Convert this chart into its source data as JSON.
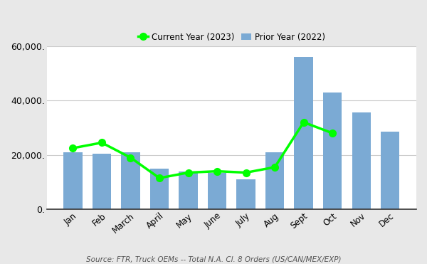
{
  "months": [
    "Jan",
    "Feb",
    "March",
    "April",
    "May",
    "June",
    "July",
    "Aug",
    "Sept",
    "Oct",
    "Nov",
    "Dec"
  ],
  "prior_year_2022": [
    21000,
    20500,
    21000,
    15000,
    14000,
    13500,
    11000,
    21000,
    56000,
    43000,
    35500,
    28500
  ],
  "current_year_2023": [
    22500,
    24500,
    19000,
    11500,
    13500,
    14000,
    13500,
    15500,
    32000,
    28000,
    null,
    null
  ],
  "bar_color": "#7BAAD4",
  "line_color": "#00FF00",
  "line_marker": "o",
  "line_marker_color": "#00FF00",
  "line_marker_size": 7,
  "line_width": 2.5,
  "legend_prior": "Prior Year (2022)",
  "legend_current": "Current Year (2023)",
  "ylabel_max": 60000,
  "yticks": [
    0,
    20000,
    40000,
    60000
  ],
  "source_text": "Source: FTR, Truck OEMs -- Total N.A. Cl. 8 Orders (US/CAN/MEX/EXP)",
  "background_color": "#e8e8e8",
  "plot_bg_color": "#ffffff",
  "grid_color": "#cccccc"
}
